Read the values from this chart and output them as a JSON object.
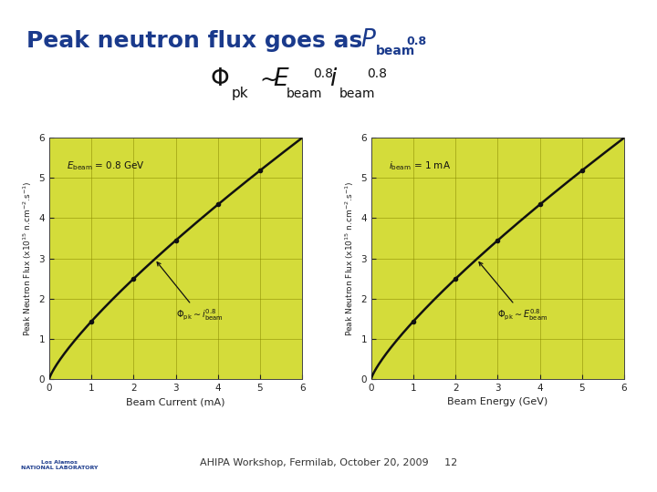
{
  "title_color": "#1a3a8c",
  "title_fontsize": 18,
  "separator_color": "#c8a020",
  "bg_color": "#ffffff",
  "plot_bg_color": "#d4dc3a",
  "ax1_xlabel": "Beam Current (mA)",
  "ax1_ylabel": "Peak Neutron Flux (x10$^{15}$ n.cm$^{-2}$.s$^{-1}$)",
  "ax2_xlabel": "Beam Energy (GeV)",
  "ax2_ylabel": "Peak Neutron Flux (x10$^{15}$ n.cm$^{-2}$.s$^{-1}$)",
  "xlim": [
    0,
    6
  ],
  "ylim": [
    0,
    6
  ],
  "curve_color": "#111111",
  "grid_color": "#888800",
  "tick_color": "#222222",
  "footer_text": "AHIPA Workshop, Fermilab, October 20, 2009     12"
}
